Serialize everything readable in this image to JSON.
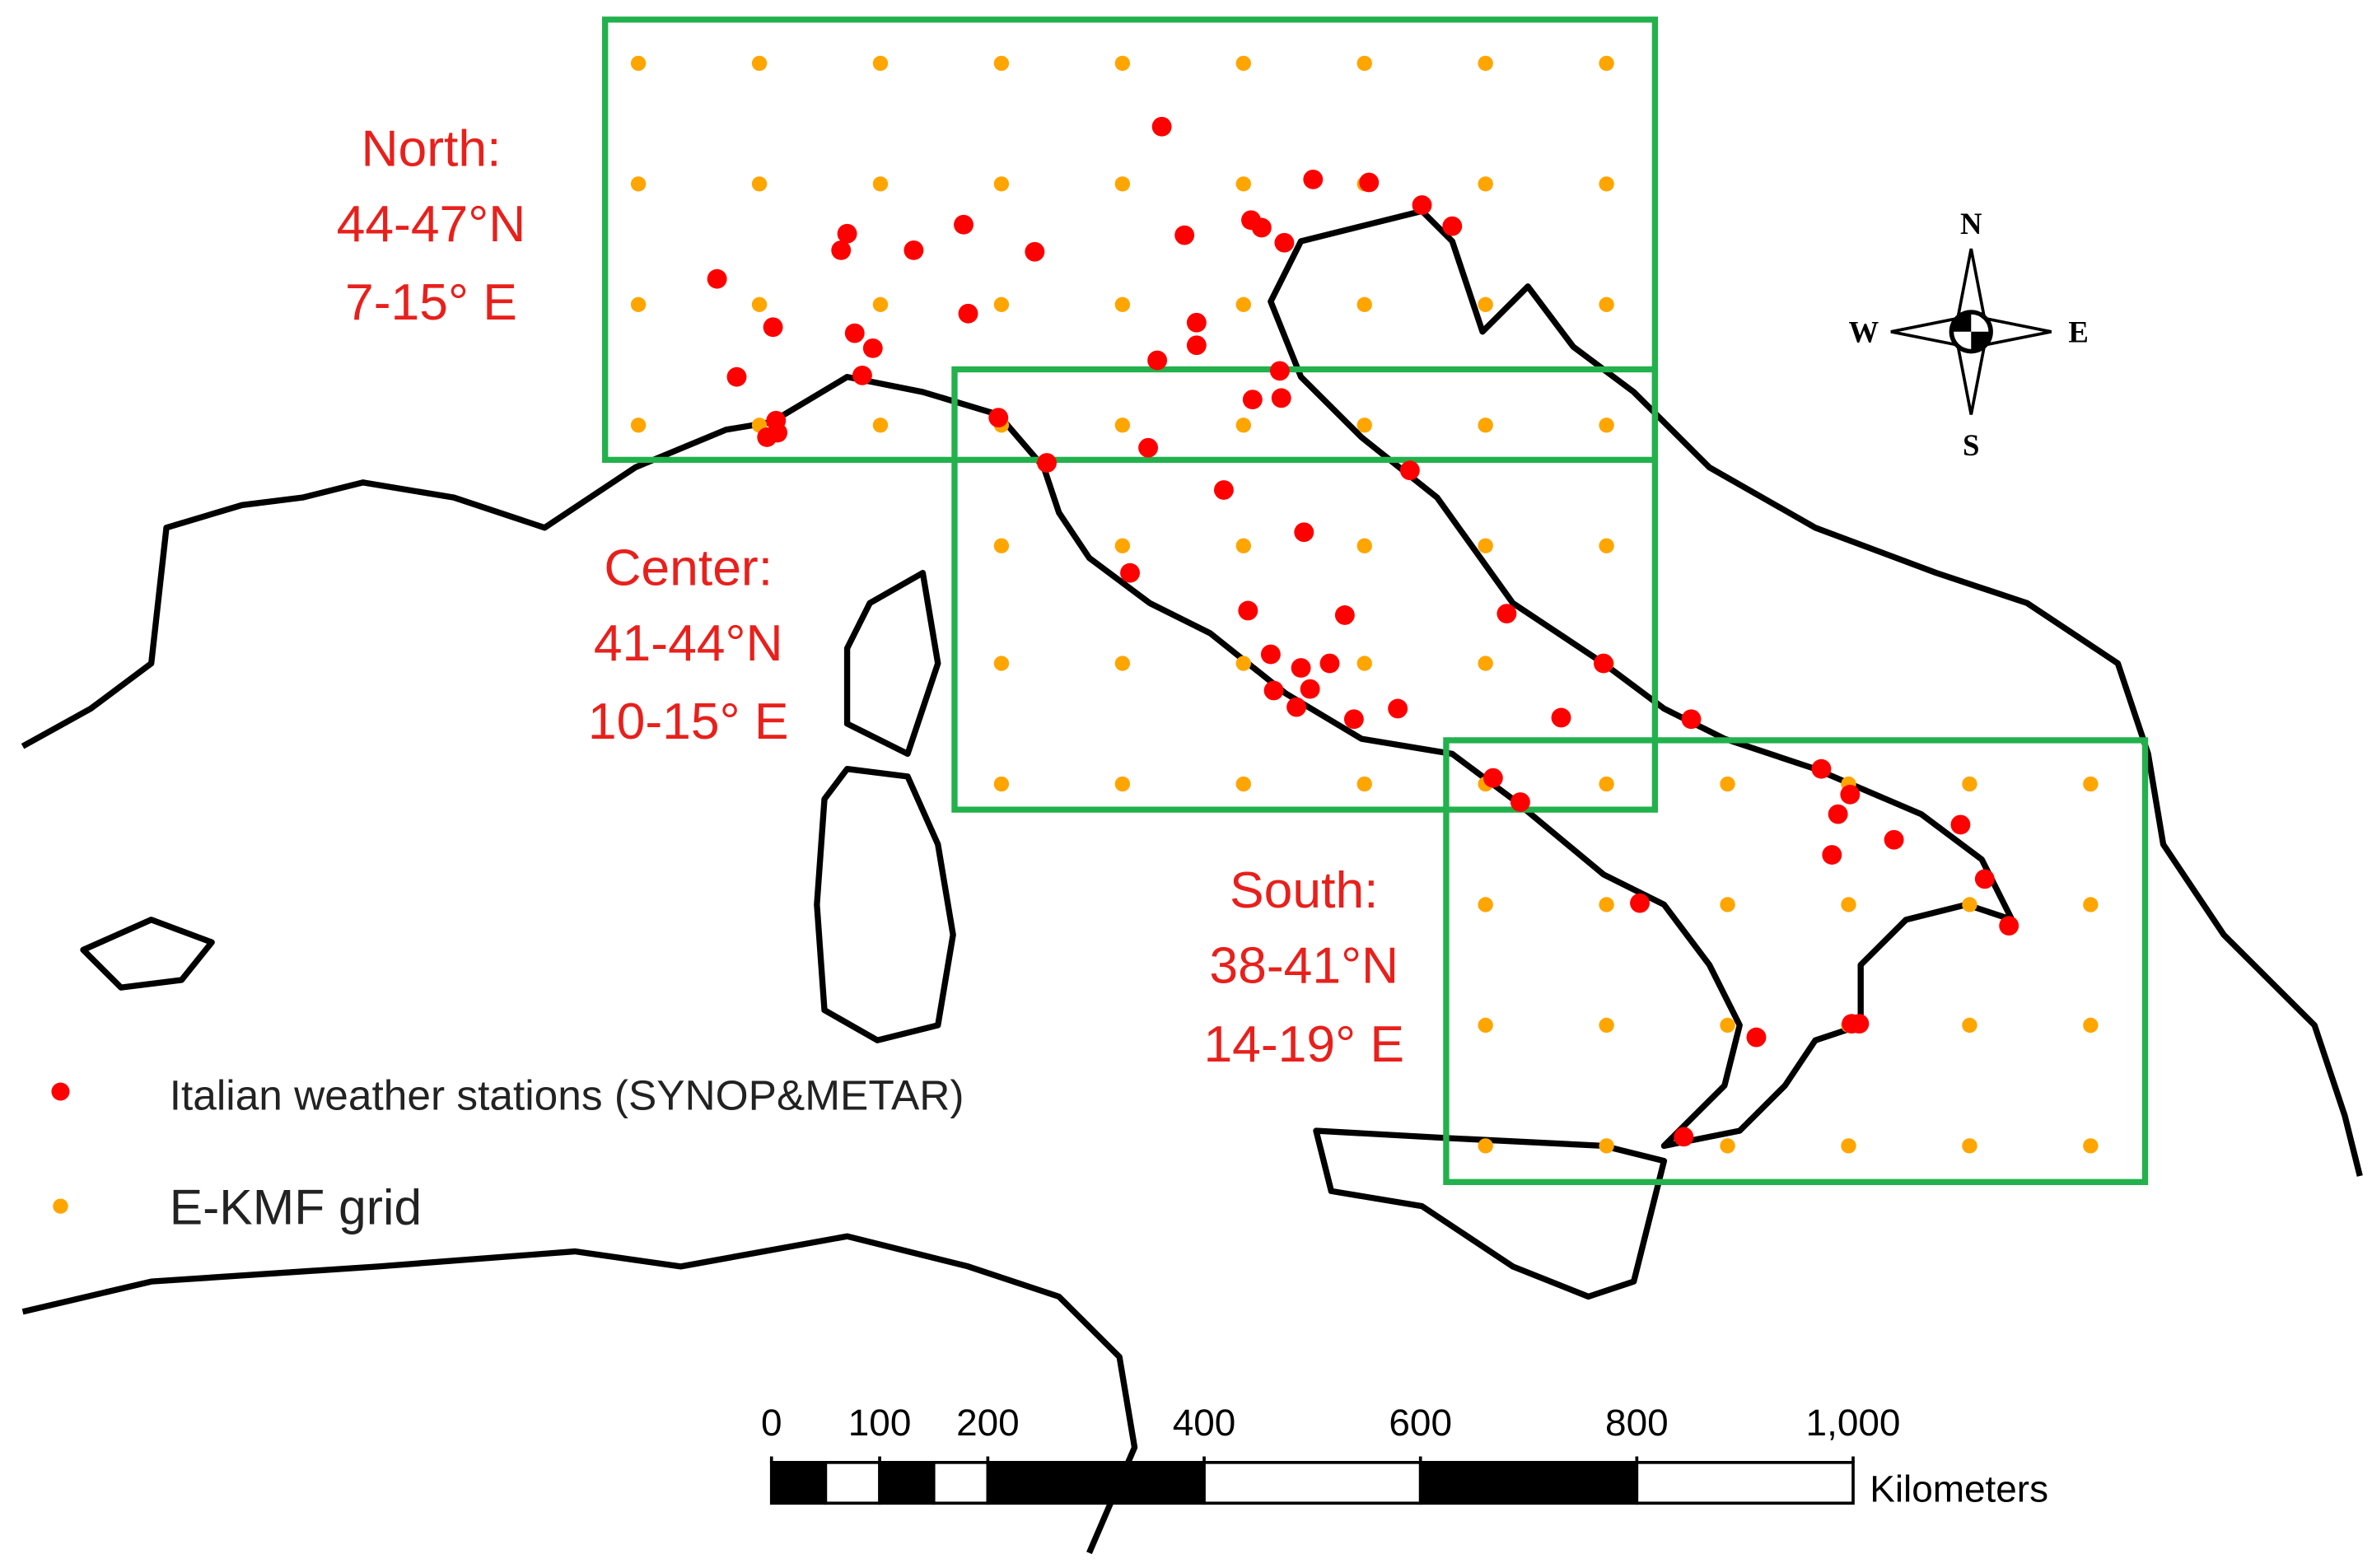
{
  "regions": [
    {
      "name": "North:",
      "lat": "44-47°N",
      "lon": "7-15° E"
    },
    {
      "name": "Center:",
      "lat": "41-44°N",
      "lon": "10-15° E"
    },
    {
      "name": "South:",
      "lat": "38-41°N",
      "lon": "14-19° E"
    }
  ],
  "legend": [
    "Italian weather stations (SYNOP&METAR)",
    "E-KMF grid"
  ],
  "compass": {
    "north": "N",
    "south": "S",
    "west": "W",
    "east": "E"
  },
  "scale_bar": {
    "ticks": [
      0,
      100,
      200,
      400,
      600,
      800,
      {
        "value": 1000,
        "label": "1,000"
      }
    ],
    "unit": "Kilometers"
  }
}
